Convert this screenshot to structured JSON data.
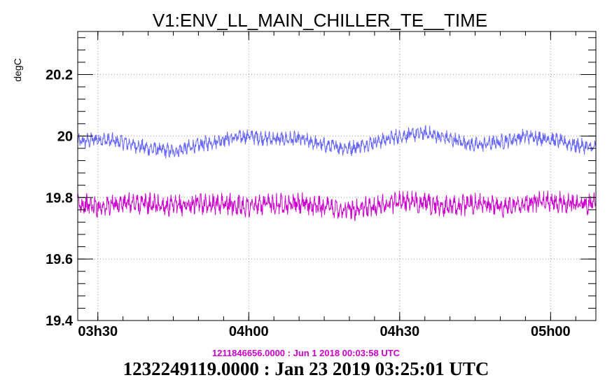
{
  "chart_data": {
    "type": "line",
    "title": "V1:ENV_LL_MAIN_CHILLER_TE__TIME",
    "ylabel": "degC",
    "xlabel": "",
    "ylim": [
      19.4,
      20.34
    ],
    "y_ticks": [
      {
        "value": 19.4,
        "label": "19.4"
      },
      {
        "value": 19.6,
        "label": "19.6"
      },
      {
        "value": 19.8,
        "label": "19.8"
      },
      {
        "value": 20.0,
        "label": "20"
      },
      {
        "value": 20.2,
        "label": "20.2"
      }
    ],
    "xlim": [
      "03:26",
      "05:09"
    ],
    "x_ticks": [
      {
        "value": "03:30",
        "label": "03h30"
      },
      {
        "value": "04:00",
        "label": "04h00"
      },
      {
        "value": "04:30",
        "label": "04h30"
      },
      {
        "value": "05:00",
        "label": "05h00"
      }
    ],
    "grid": true,
    "series": [
      {
        "color": "#6666ff",
        "x": [
          "03:26",
          "03:30",
          "03:35",
          "03:40",
          "03:45",
          "03:50",
          "03:55",
          "04:00",
          "04:05",
          "04:10",
          "04:15",
          "04:20",
          "04:25",
          "04:30",
          "04:35",
          "04:40",
          "04:45",
          "04:50",
          "04:55",
          "05:00",
          "05:05",
          "05:09"
        ],
        "y": [
          19.98,
          19.99,
          19.98,
          19.96,
          19.95,
          19.97,
          19.99,
          20.0,
          19.99,
          19.99,
          19.97,
          19.96,
          19.98,
          20.0,
          20.01,
          19.99,
          19.97,
          19.98,
          20.0,
          19.99,
          19.97,
          19.96
        ],
        "noise": 0.025
      },
      {
        "color": "#cc00cc",
        "x": [
          "03:26",
          "03:30",
          "03:35",
          "03:40",
          "03:45",
          "03:50",
          "03:55",
          "04:00",
          "04:05",
          "04:10",
          "04:15",
          "04:20",
          "04:25",
          "04:30",
          "04:35",
          "04:40",
          "04:45",
          "04:50",
          "04:55",
          "05:00",
          "05:05",
          "05:09"
        ],
        "y": [
          19.78,
          19.77,
          19.78,
          19.78,
          19.77,
          19.78,
          19.78,
          19.77,
          19.78,
          19.78,
          19.77,
          19.76,
          19.77,
          19.79,
          19.78,
          19.77,
          19.78,
          19.77,
          19.78,
          19.79,
          19.78,
          19.78
        ],
        "noise": 0.035
      }
    ]
  },
  "footer": {
    "reference_time": "1211846656.0000 : Jun  1 2018 00:03:58 UTC",
    "current_time": "1232249119.0000 : Jan 23 2019 03:25:01 UTC"
  }
}
